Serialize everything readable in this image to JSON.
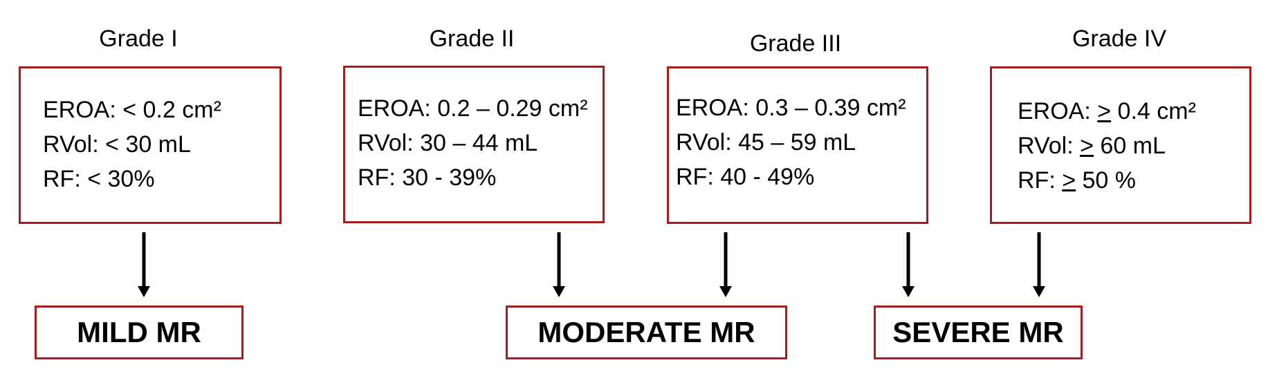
{
  "grades": [
    {
      "title": "Grade I",
      "eroa_label": "EROA: ",
      "eroa_sym": "<",
      "eroa_value": " 0.2 cm²",
      "rvol_label": "RVol: ",
      "rvol_sym": "<",
      "rvol_value": " 30 mL",
      "rf_label": "RF: ",
      "rf_sym": "<",
      "rf_value": " 30%"
    },
    {
      "title": "Grade II",
      "eroa_text": "EROA: 0.2 – 0.29 cm²",
      "rvol_text": "RVol: 30 – 44 mL",
      "rf_text": "RF: 30 - 39%"
    },
    {
      "title": "Grade III",
      "eroa_text": "EROA: 0.3 – 0.39 cm²",
      "rvol_text": "RVol: 45 – 59 mL",
      "rf_text": "RF: 40 - 49%"
    },
    {
      "title": "Grade IV",
      "eroa_label": "EROA: ",
      "eroa_sym": ">",
      "eroa_value": " 0.4 cm²",
      "rvol_label": "RVol: ",
      "rvol_sym": ">",
      "rvol_value": " 60 mL",
      "rf_label": "RF: ",
      "rf_sym": ">",
      "rf_value": " 50 %"
    }
  ],
  "results": {
    "mild": "MILD MR",
    "moderate": "MODERATE MR",
    "severe": "SEVERE MR"
  },
  "colors": {
    "border": "#a61c1c",
    "arrow": "#000000"
  }
}
